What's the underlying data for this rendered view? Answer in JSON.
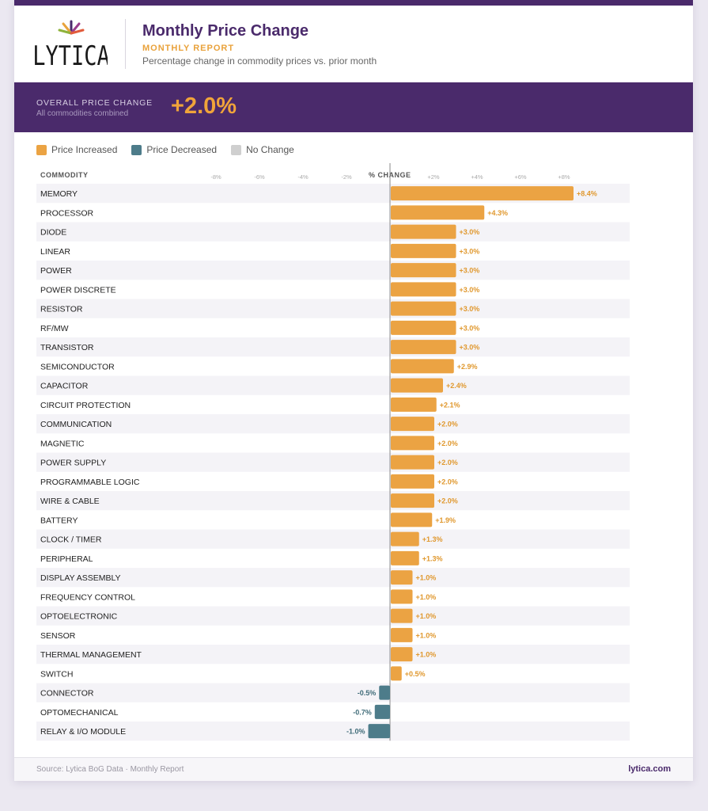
{
  "header": {
    "logo_text": "LYTICA",
    "title": "Monthly Price Change",
    "subtitle": "MONTHLY REPORT",
    "description": "Percentage change in commodity prices vs. prior month"
  },
  "summary": {
    "label": "OVERALL PRICE CHANGE",
    "sublabel": "All commodities combined",
    "value": "+2.0%"
  },
  "legend": [
    {
      "label": "Price Increased",
      "color": "#eba343"
    },
    {
      "label": "Price Decreased",
      "color": "#4d7c8a"
    },
    {
      "label": "No Change",
      "color": "#cfcfcf"
    }
  ],
  "colors": {
    "increase": "#eba343",
    "decrease": "#4d7c8a",
    "increase_text": "#e0982e",
    "decrease_text": "#3f6b78"
  },
  "footer": {
    "source": "Source: Lytica BoG Data · Monthly Report",
    "site": "lytica.com"
  },
  "chart_data": {
    "type": "bar",
    "orientation": "horizontal",
    "category_header": "COMMODITY",
    "value_header": "% CHANGE",
    "xlim": [
      -8,
      8
    ],
    "ticks": [
      "-8%",
      "-6%",
      "-4%",
      "-2%",
      "+2%",
      "+4%",
      "+6%",
      "+8%"
    ],
    "tick_values": [
      -8,
      -6,
      -4,
      -2,
      2,
      4,
      6,
      8
    ],
    "categories": [
      "MEMORY",
      "PROCESSOR",
      "DIODE",
      "LINEAR",
      "POWER",
      "POWER DISCRETE",
      "RESISTOR",
      "RF/MW",
      "TRANSISTOR",
      "SEMICONDUCTOR",
      "CAPACITOR",
      "CIRCUIT PROTECTION",
      "COMMUNICATION",
      "MAGNETIC",
      "POWER SUPPLY",
      "PROGRAMMABLE LOGIC",
      "WIRE & CABLE",
      "BATTERY",
      "CLOCK / TIMER",
      "PERIPHERAL",
      "DISPLAY ASSEMBLY",
      "FREQUENCY CONTROL",
      "OPTOELECTRONIC",
      "SENSOR",
      "THERMAL MANAGEMENT",
      "SWITCH",
      "CONNECTOR",
      "OPTOMECHANICAL",
      "RELAY & I/O MODULE"
    ],
    "values": [
      8.4,
      4.3,
      3.0,
      3.0,
      3.0,
      3.0,
      3.0,
      3.0,
      3.0,
      2.9,
      2.4,
      2.1,
      2.0,
      2.0,
      2.0,
      2.0,
      2.0,
      1.9,
      1.3,
      1.3,
      1.0,
      1.0,
      1.0,
      1.0,
      1.0,
      0.5,
      -0.5,
      -0.7,
      -1.0
    ],
    "value_labels": [
      "+8.4%",
      "+4.3%",
      "+3.0%",
      "+3.0%",
      "+3.0%",
      "+3.0%",
      "+3.0%",
      "+3.0%",
      "+3.0%",
      "+2.9%",
      "+2.4%",
      "+2.1%",
      "+2.0%",
      "+2.0%",
      "+2.0%",
      "+2.0%",
      "+2.0%",
      "+1.9%",
      "+1.3%",
      "+1.3%",
      "+1.0%",
      "+1.0%",
      "+1.0%",
      "+1.0%",
      "+1.0%",
      "+0.5%",
      "-0.5%",
      "-0.7%",
      "-1.0%"
    ]
  }
}
